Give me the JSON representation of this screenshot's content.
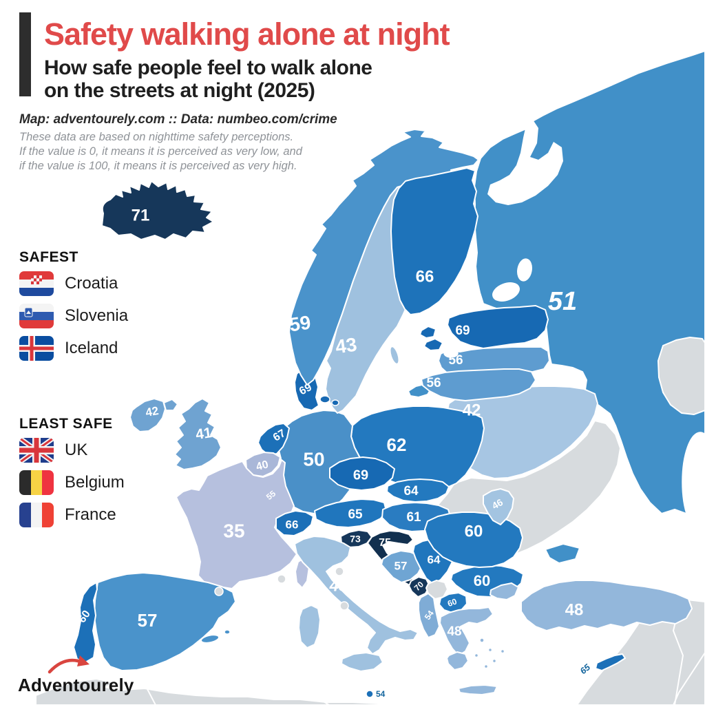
{
  "header": {
    "title": "Safety walking alone at night",
    "subtitle_line1": "How safe people feel to walk alone",
    "subtitle_line2": "on the streets at night (2025)",
    "source": "Map: adventourely.com :: Data: numbeo.com/crime",
    "note_line1": "These data are based on nighttime safety perceptions.",
    "note_line2": "If the value is 0, it means it is perceived as very low, and",
    "note_line3": "if the value is 100, it means it is perceived as very high."
  },
  "legend": {
    "safest": {
      "heading": "SAFEST",
      "items": [
        {
          "flag": "croatia-flag-icon",
          "label": "Croatia"
        },
        {
          "flag": "slovenia-flag-icon",
          "label": "Slovenia"
        },
        {
          "flag": "iceland-flag-icon",
          "label": "Iceland"
        }
      ]
    },
    "least_safe": {
      "heading": "LEAST SAFE",
      "items": [
        {
          "flag": "uk-flag-icon",
          "label": "UK"
        },
        {
          "flag": "belgium-flag-icon",
          "label": "Belgium"
        },
        {
          "flag": "france-flag-icon",
          "label": "France"
        }
      ]
    }
  },
  "branding": {
    "logo_text": "Adventourely",
    "accent": "#E04A4A"
  },
  "palette": {
    "title_red": "#E04A4A",
    "sea": "#FFFFFF",
    "no_data_gray": "#D7DBDE",
    "border_white": "#FFFFFF",
    "label_on_land": "#FFFFFF",
    "label_on_sea": "#15669E"
  },
  "chart_data": {
    "type": "choropleth-map",
    "title": "Safety walking alone at night",
    "subtitle": "How safe people feel to walk alone on the streets at night (2025)",
    "region": "Europe",
    "year": "2025",
    "scale": {
      "min": 0,
      "max": 100,
      "min_meaning": "perceived as very low",
      "max_meaning": "perceived as very high"
    },
    "safest": [
      "Croatia",
      "Slovenia",
      "Iceland"
    ],
    "least_safe": [
      "UK",
      "Belgium",
      "France"
    ],
    "countries": [
      {
        "id": "iceland",
        "name": "Iceland",
        "value": 71,
        "color": "#16375A"
      },
      {
        "id": "norway",
        "name": "Norway",
        "value": 59,
        "color": "#4A93CB"
      },
      {
        "id": "sweden",
        "name": "Sweden",
        "value": 43,
        "color": "#9FC1DF"
      },
      {
        "id": "finland",
        "name": "Finland",
        "value": 66,
        "color": "#1E73BA"
      },
      {
        "id": "denmark",
        "name": "Denmark",
        "value": 69,
        "color": "#1769B3"
      },
      {
        "id": "estonia",
        "name": "Estonia",
        "value": 69,
        "color": "#1769B3"
      },
      {
        "id": "latvia",
        "name": "Latvia",
        "value": 56,
        "color": "#5E9CD0"
      },
      {
        "id": "lithuania",
        "name": "Lithuania",
        "value": 56,
        "color": "#5E9CD0"
      },
      {
        "id": "russia",
        "name": "Russia",
        "value": 51,
        "color": "#4190C8"
      },
      {
        "id": "belarus",
        "name": "Belarus",
        "value": 42,
        "color": "#A7C6E3"
      },
      {
        "id": "poland",
        "name": "Poland",
        "value": 62,
        "color": "#2379BF"
      },
      {
        "id": "germany",
        "name": "Germany",
        "value": 50,
        "color": "#4A90C8"
      },
      {
        "id": "netherlands",
        "name": "Netherlands",
        "value": 67,
        "color": "#1C70B8"
      },
      {
        "id": "belgium",
        "name": "Belgium",
        "value": 40,
        "color": "#A9B7D8"
      },
      {
        "id": "luxembourg",
        "name": "Luxembourg",
        "value": 55,
        "color": "#8FB0D6"
      },
      {
        "id": "france",
        "name": "France",
        "value": 35,
        "color": "#B6C0DE"
      },
      {
        "id": "ireland",
        "name": "Ireland",
        "value": 42,
        "color": "#6FA3D1"
      },
      {
        "id": "uk",
        "name": "United Kingdom",
        "value": 41,
        "color": "#6FA3D1"
      },
      {
        "id": "switzerland",
        "name": "Switzerland",
        "value": 66,
        "color": "#1C70B8"
      },
      {
        "id": "austria",
        "name": "Austria",
        "value": 65,
        "color": "#2076BD"
      },
      {
        "id": "czechia",
        "name": "Czechia",
        "value": 69,
        "color": "#1769B3"
      },
      {
        "id": "slovakia",
        "name": "Slovakia",
        "value": 64,
        "color": "#2379BF"
      },
      {
        "id": "hungary",
        "name": "Hungary",
        "value": 61,
        "color": "#2A7CC1"
      },
      {
        "id": "slovenia",
        "name": "Slovenia",
        "value": 73,
        "color": "#16375A"
      },
      {
        "id": "croatia",
        "name": "Croatia",
        "value": 75,
        "color": "#12304F"
      },
      {
        "id": "bosnia",
        "name": "Bosnia and Herzegovina",
        "value": 57,
        "color": "#6FA5D3"
      },
      {
        "id": "serbia",
        "name": "Serbia",
        "value": 64,
        "color": "#2076BD"
      },
      {
        "id": "montenegro",
        "name": "Montenegro",
        "value": 70,
        "color": "#16375A"
      },
      {
        "id": "kosovo",
        "name": "Kosovo",
        "value": null,
        "color": "#D7DBDE"
      },
      {
        "id": "n-macedonia",
        "name": "North Macedonia",
        "value": 60,
        "color": "#2379BF"
      },
      {
        "id": "albania",
        "name": "Albania",
        "value": 54,
        "color": "#7FACD6"
      },
      {
        "id": "greece",
        "name": "Greece",
        "value": 48,
        "color": "#93B7DB"
      },
      {
        "id": "bulgaria",
        "name": "Bulgaria",
        "value": 60,
        "color": "#2379BF"
      },
      {
        "id": "romania",
        "name": "Romania",
        "value": 60,
        "color": "#2379BF"
      },
      {
        "id": "moldova",
        "name": "Moldova",
        "value": 46,
        "color": "#A3C4E1"
      },
      {
        "id": "ukraine",
        "name": "Ukraine",
        "value": null,
        "color": "#D7DBDE"
      },
      {
        "id": "spain",
        "name": "Spain",
        "value": 57,
        "color": "#4A93CB"
      },
      {
        "id": "portugal",
        "name": "Portugal",
        "value": 60,
        "color": "#1C70B8"
      },
      {
        "id": "italy",
        "name": "Italy",
        "value": 43,
        "color": "#9FC1DF"
      },
      {
        "id": "malta",
        "name": "Malta",
        "value": 54,
        "color": "#1C70B8"
      },
      {
        "id": "turkey",
        "name": "Turkey",
        "value": 48,
        "color": "#93B7DB"
      },
      {
        "id": "cyprus",
        "name": "Cyprus",
        "value": 65,
        "color": "#1C70B8"
      }
    ]
  }
}
